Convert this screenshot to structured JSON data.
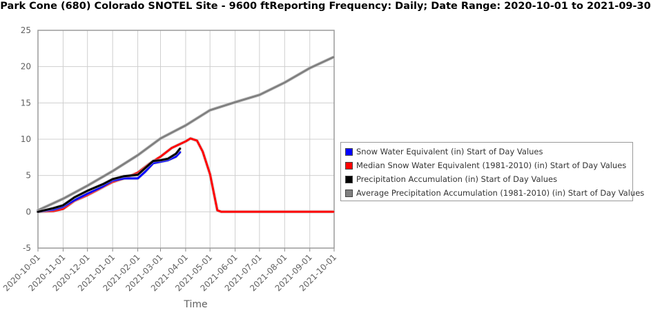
{
  "title": "Park Cone (680) Colorado  SNOTEL Site - 9600 ftReporting Frequency: Daily; Date Range: 2020-10-01 to 2021-09-30",
  "chart_data": {
    "type": "line",
    "title": "Park Cone (680) Colorado  SNOTEL Site - 9600 ftReporting Frequency: Daily; Date Range: 2020-10-01 to 2021-09-30",
    "xlabel": "Time",
    "ylabel": "",
    "ylim": [
      -5,
      25
    ],
    "yticks": [
      -5,
      0,
      5,
      10,
      15,
      20,
      25
    ],
    "xticks": [
      "2020-10-01",
      "2020-11-01",
      "2020-12-01",
      "2021-01-01",
      "2021-02-01",
      "2021-03-01",
      "2021-04-01",
      "2021-05-01",
      "2021-06-01",
      "2021-07-01",
      "2021-08-01",
      "2021-09-01",
      "2021-10-01"
    ],
    "grid": true,
    "legend_position": "right",
    "series": [
      {
        "name": "Snow Water Equivalent (in) Start of Day Values",
        "color": "#0000ff",
        "x": [
          "2020-10-01",
          "2020-10-20",
          "2020-11-01",
          "2020-11-15",
          "2020-12-01",
          "2020-12-20",
          "2021-01-01",
          "2021-01-15",
          "2021-02-01",
          "2021-02-10",
          "2021-02-20",
          "2021-03-01",
          "2021-03-10",
          "2021-03-20",
          "2021-03-25"
        ],
        "y": [
          0.0,
          0.3,
          0.7,
          1.6,
          2.5,
          3.5,
          4.3,
          4.6,
          4.6,
          5.5,
          6.7,
          6.9,
          7.1,
          7.6,
          8.2
        ]
      },
      {
        "name": "Median Snow Water Equivalent (1981-2010) (in) Start of Day Values",
        "color": "#ff0000",
        "x": [
          "2020-10-01",
          "2020-10-20",
          "2020-11-01",
          "2020-11-15",
          "2020-12-01",
          "2020-12-15",
          "2021-01-01",
          "2021-01-15",
          "2021-02-01",
          "2021-02-15",
          "2021-03-01",
          "2021-03-15",
          "2021-04-01",
          "2021-04-07",
          "2021-04-15",
          "2021-04-22",
          "2021-05-01",
          "2021-05-10",
          "2021-05-15",
          "2021-06-01",
          "2021-09-30"
        ],
        "y": [
          0.0,
          0.1,
          0.4,
          1.5,
          2.3,
          3.1,
          4.1,
          4.6,
          5.4,
          6.6,
          7.6,
          8.8,
          9.7,
          10.1,
          9.8,
          8.3,
          5.2,
          0.2,
          0.0,
          0.0,
          0.0
        ]
      },
      {
        "name": "Precipitation Accumulation (in) Start of Day Values",
        "color": "#000000",
        "x": [
          "2020-10-01",
          "2020-10-20",
          "2020-11-01",
          "2020-11-15",
          "2020-12-01",
          "2020-12-20",
          "2021-01-01",
          "2021-01-15",
          "2021-02-01",
          "2021-02-10",
          "2021-02-20",
          "2021-03-01",
          "2021-03-10",
          "2021-03-20",
          "2021-03-25"
        ],
        "y": [
          0.0,
          0.5,
          0.9,
          2.0,
          2.9,
          3.8,
          4.5,
          4.9,
          5.1,
          6.0,
          7.0,
          7.1,
          7.3,
          8.0,
          8.7
        ]
      },
      {
        "name": "Average Precipitation Accumulation (1981-2010) (in) Start of Day Values",
        "color": "#808080",
        "x": [
          "2020-10-01",
          "2020-11-01",
          "2020-12-01",
          "2021-01-01",
          "2021-02-01",
          "2021-03-01",
          "2021-04-01",
          "2021-05-01",
          "2021-06-01",
          "2021-07-01",
          "2021-08-01",
          "2021-09-01",
          "2021-09-30"
        ],
        "y": [
          0.2,
          1.8,
          3.6,
          5.6,
          7.8,
          10.1,
          11.9,
          14.0,
          15.1,
          16.1,
          17.8,
          19.8,
          21.3
        ]
      }
    ]
  }
}
